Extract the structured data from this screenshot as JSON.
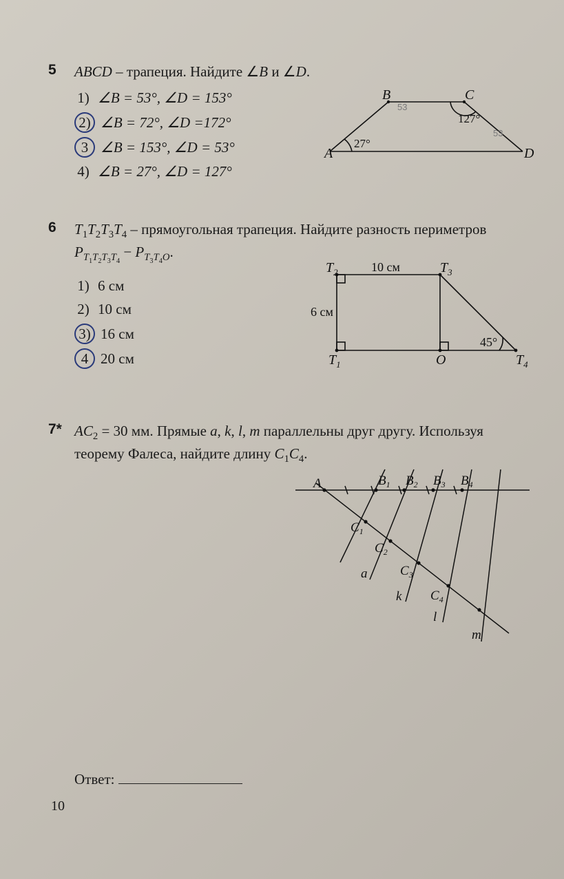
{
  "page_number": "10",
  "problems": {
    "p5": {
      "num": "5",
      "prompt_html": "<span class='i'>ABCD</span> – трапеция. Найдите ∠<span class='i'>B</span> и ∠<span class='i'>D</span>.",
      "options": [
        {
          "n": "1)",
          "text": "∠B = 53°, ∠D = 153°",
          "circled": false
        },
        {
          "n": "2)",
          "text": "∠B = 72°, ∠D =172°",
          "circled": true
        },
        {
          "n": "3)",
          "text": "∠B = 153°, ∠D = 53°",
          "circled": true
        },
        {
          "n": "4)",
          "text": "∠B = 27°, ∠D = 127°",
          "circled": false
        }
      ],
      "diagram": {
        "A": "A",
        "B": "B",
        "C": "C",
        "D": "D",
        "angle_A": "27°",
        "angle_C": "127°",
        "pencil_angleB": "53",
        "pencil_angleD": "53",
        "stroke": "#111",
        "font_size": 18
      }
    },
    "p6": {
      "num": "6",
      "prompt_html": "<span class='i'>T</span><sub>1</sub><span class='i'>T</span><sub>2</sub><span class='i'>T</span><sub>3</sub><span class='i'>T</span><sub>4</sub> – прямоугольная трапеция. Найдите разность периметров <span class='i'>P</span><sub><span class='i'>T</span><sub>1</sub><span class='i'>T</span><sub>2</sub><span class='i'>T</span><sub>3</sub><span class='i'>T</span><sub>4</sub></sub> − <span class='i'>P</span><sub><span class='i'>T</span><sub>3</sub><span class='i'>T</span><sub>4</sub><span class='i'>O</span></sub>.",
      "options": [
        {
          "n": "1)",
          "text": "6 см",
          "circled": false
        },
        {
          "n": "2)",
          "text": "10 см",
          "circled": false
        },
        {
          "n": "3)",
          "text": "16 см",
          "circled": true
        },
        {
          "n": "4)",
          "text": "20 см",
          "circled": true
        }
      ],
      "diagram": {
        "T1": "T",
        "T2": "T",
        "T3": "T",
        "T4": "T",
        "O": "O",
        "top_len": "10 см",
        "left_len": "6 см",
        "angle": "45°",
        "stroke": "#111",
        "font_size": 18
      }
    },
    "p7": {
      "num": "7*",
      "prompt_html": "<span class='i'>AC</span><sub>2</sub> = 30 мм. Прямые <span class='i'>a</span>, <span class='i'>k</span>, <span class='i'>l</span>, <span class='i'>m</span> параллельны друг другу. Используя теорему Фалеса, найдите длину <span class='i'>C</span><sub>1</sub><span class='i'>C</span><sub>4</sub>.",
      "answer_label": "Ответ:",
      "diagram": {
        "A": "A",
        "B1": "B",
        "B2": "B",
        "B3": "B",
        "B4": "B",
        "C1": "C",
        "C2": "C",
        "C3": "C",
        "C4": "C",
        "a": "a",
        "k": "k",
        "l": "l",
        "m": "m",
        "stroke": "#111",
        "font_size": 17
      }
    }
  }
}
